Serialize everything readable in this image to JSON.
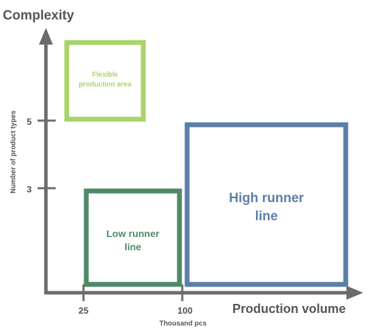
{
  "axes": {
    "y_title": "Complexity",
    "y_label": "Number of product  types",
    "x_title": "Production volume",
    "x_label": "Thousand pcs",
    "y_ticks": [
      "5",
      "3"
    ],
    "x_ticks": [
      "25",
      "100"
    ]
  },
  "boxes": [
    {
      "id": "flexible",
      "lines": [
        "Flexible",
        "production area"
      ],
      "color": "#a8d46a"
    },
    {
      "id": "low",
      "lines": [
        "Low runner",
        "line"
      ],
      "color": "#4f8a68"
    },
    {
      "id": "high",
      "lines": [
        "High runner",
        "line"
      ],
      "color": "#5c7fa8"
    }
  ],
  "colors": {
    "axis": "#6b6b6b",
    "axis_text": "#555555"
  }
}
